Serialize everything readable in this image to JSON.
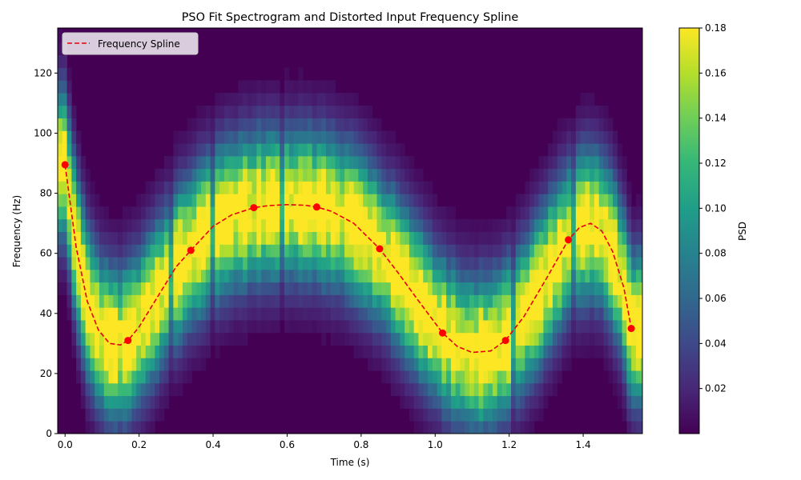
{
  "chart_data": {
    "type": "heatmap",
    "title": "PSO Fit Spectrogram and Distorted Input Frequency Spline",
    "xlabel": "Time (s)",
    "ylabel": "Frequency (Hz)",
    "xlim": [
      -0.02,
      1.56
    ],
    "ylim": [
      0,
      135
    ],
    "xticks": [
      0.0,
      0.2,
      0.4,
      0.6,
      0.8,
      1.0,
      1.2,
      1.4
    ],
    "xtick_labels": [
      "0.0",
      "0.2",
      "0.4",
      "0.6",
      "0.8",
      "1.0",
      "1.2",
      "1.4"
    ],
    "yticks": [
      0,
      20,
      40,
      60,
      80,
      100,
      120
    ],
    "ytick_labels": [
      "0",
      "20",
      "40",
      "60",
      "80",
      "100",
      "120"
    ],
    "grid": false,
    "legend_position": "top-left",
    "colormap": "viridis",
    "colorbar": {
      "label": "PSD",
      "range": [
        0.0,
        0.18
      ],
      "ticks": [
        0.02,
        0.04,
        0.06,
        0.08,
        0.1,
        0.12,
        0.14,
        0.16,
        0.18
      ],
      "tick_labels": [
        "0.02",
        "0.04",
        "0.06",
        "0.08",
        "0.10",
        "0.12",
        "0.14",
        "0.16",
        "0.18"
      ]
    },
    "series": [
      {
        "name": "Frequency Spline",
        "style": "dashed",
        "color": "#e8000b",
        "x": [
          0.0,
          0.03,
          0.06,
          0.09,
          0.12,
          0.15,
          0.17,
          0.2,
          0.25,
          0.3,
          0.34,
          0.4,
          0.45,
          0.51,
          0.55,
          0.6,
          0.65,
          0.68,
          0.72,
          0.78,
          0.85,
          0.9,
          0.95,
          1.02,
          1.06,
          1.1,
          1.15,
          1.19,
          1.24,
          1.3,
          1.36,
          1.39,
          1.42,
          1.45,
          1.48,
          1.51,
          1.53
        ],
        "y": [
          89.5,
          62.0,
          44.0,
          34.5,
          30.0,
          29.5,
          31.0,
          35.5,
          45.5,
          55.5,
          61.0,
          69.0,
          72.8,
          75.2,
          75.9,
          76.2,
          76.0,
          75.4,
          74.0,
          70.0,
          61.5,
          53.5,
          45.0,
          33.5,
          29.0,
          27.0,
          27.5,
          31.0,
          39.0,
          51.5,
          64.5,
          68.6,
          70.0,
          67.5,
          60.5,
          48.5,
          35.0
        ]
      },
      {
        "name": "control-points",
        "x": [
          0.0,
          0.17,
          0.34,
          0.51,
          0.68,
          0.85,
          1.02,
          1.19,
          1.36,
          1.53
        ],
        "y": [
          89.5,
          31.0,
          61.0,
          75.2,
          75.4,
          61.5,
          33.5,
          31.0,
          64.5,
          35.0
        ]
      }
    ]
  }
}
